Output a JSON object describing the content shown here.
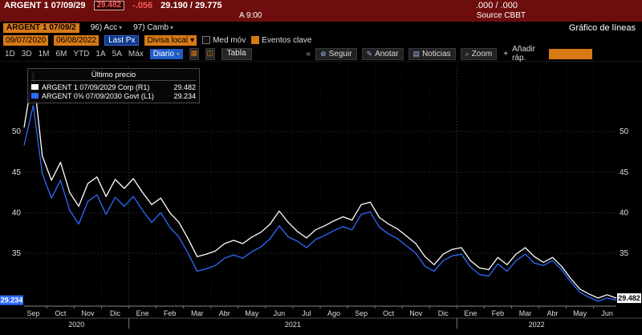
{
  "colors": {
    "header_bg": "#6e0d0d",
    "amber": "#d87a16",
    "toolbar_blue": "#1f5cc8",
    "line_white": "#ffffff",
    "line_blue": "#2e6bff",
    "chart_bg": "#000000"
  },
  "icons": {
    "chevron_down": "▾",
    "chevrons_left": "«",
    "follow": "⊕",
    "annotate": "✎",
    "news": "▤",
    "zoom": "⌕",
    "plus": "+",
    "chart_grid": "▦",
    "chart_alt": "◫"
  },
  "quote_bar": {
    "security": "ARGENT 1 07/09/29",
    "last_price": "29.482",
    "change": "-.056",
    "bid_ask": "29.190 / 29.775",
    "yields": ".000 / .000",
    "as_of": "A 9:00",
    "source": "Source CBBT"
  },
  "menu_bar": {
    "security_field": "ARGENT 1 07/09/2",
    "items": [
      {
        "label": "96) Acc"
      },
      {
        "label": "97) Camb"
      }
    ],
    "screen_title": "Gráfico de líneas"
  },
  "settings_bar": {
    "date_from": "09/07/2020",
    "date_to": "06/08/2022",
    "price_type": "Last Px",
    "currency": "Divisa local",
    "mov_avg_label": "Med móv",
    "key_events_label": "Eventos clave"
  },
  "toolbar": {
    "ranges": [
      "1D",
      "3D",
      "1M",
      "6M",
      "YTD",
      "1A",
      "5A",
      "Máx"
    ],
    "period": "Diario",
    "table_label": "Tabla",
    "actions": [
      "Seguir",
      "Anotar",
      "Noticias",
      "Zoom"
    ],
    "quick_add_label": "Añadir ráp."
  },
  "legend": {
    "title": "Último precio",
    "items": [
      {
        "label": "ARGENT 1 07/09/2029 Corp (R1)",
        "value": "29.482"
      },
      {
        "label": "ARGENT 0⅝ 07/09/2030 Govt (L1)",
        "value": "29.234"
      }
    ]
  },
  "chart_data": {
    "type": "line",
    "title": "Último precio",
    "x_month_labels": [
      "Sep",
      "Oct",
      "Nov",
      "Dic",
      "Ene",
      "Feb",
      "Mar",
      "Abr",
      "May",
      "Jun",
      "Jul",
      "Ago",
      "Sep",
      "Oct",
      "Nov",
      "Dic",
      "Ene",
      "Feb",
      "Mar",
      "Abr",
      "May",
      "Jun"
    ],
    "year_labels": [
      {
        "label": "2020",
        "from": 0,
        "to": 3
      },
      {
        "label": "2021",
        "from": 4,
        "to": 15
      },
      {
        "label": "2022",
        "from": 16,
        "to": 21
      }
    ],
    "points_per_month": 3,
    "ylim": [
      28.5,
      58
    ],
    "yticks": [
      35,
      40,
      45,
      50
    ],
    "grid": true,
    "legend_position": "top-left",
    "series": [
      {
        "name": "ARGENT 1 07/09/2029 Corp (R1)",
        "axis": "right",
        "color": "#ffffff",
        "badge_bg": "#ffffff",
        "badge_fg": "#000000",
        "last_label": "29.482",
        "values": [
          50.5,
          57.3,
          47.0,
          44.0,
          46.2,
          42.5,
          40.8,
          43.6,
          44.4,
          42.0,
          44.1,
          43.0,
          44.2,
          42.5,
          41.0,
          41.8,
          40.0,
          38.8,
          36.8,
          34.6,
          34.9,
          35.3,
          36.2,
          36.6,
          36.2,
          37.0,
          37.6,
          38.6,
          40.2,
          38.8,
          37.7,
          36.9,
          37.9,
          38.4,
          39.0,
          39.5,
          39.1,
          41.0,
          41.3,
          39.4,
          38.6,
          38.0,
          37.1,
          36.2,
          34.6,
          33.6,
          34.9,
          35.5,
          35.7,
          34.1,
          33.2,
          33.0,
          34.5,
          33.6,
          34.9,
          35.7,
          34.6,
          33.9,
          34.5,
          33.4,
          31.9,
          30.6,
          30.0,
          29.5,
          29.9,
          29.482
        ]
      },
      {
        "name": "ARGENT 0⅝ 07/09/2030 Govt (L1)",
        "axis": "left",
        "color": "#2e6bff",
        "badge_bg": "#2e6bff",
        "badge_fg": "#ffffff",
        "last_label": "29.234",
        "values": [
          48.3,
          53.2,
          44.8,
          41.8,
          44.0,
          40.3,
          38.6,
          41.4,
          42.2,
          39.8,
          41.9,
          40.8,
          42.0,
          40.3,
          38.8,
          40.0,
          38.2,
          37.0,
          35.0,
          32.8,
          33.1,
          33.5,
          34.4,
          34.8,
          34.4,
          35.2,
          35.8,
          36.8,
          38.4,
          37.0,
          36.5,
          35.7,
          36.7,
          37.2,
          37.8,
          38.3,
          37.9,
          39.8,
          40.1,
          38.2,
          37.4,
          36.8,
          35.9,
          35.0,
          33.4,
          32.8,
          34.1,
          34.7,
          34.9,
          33.3,
          32.4,
          32.2,
          33.7,
          32.8,
          34.1,
          34.9,
          33.8,
          33.5,
          34.1,
          33.0,
          31.5,
          30.2,
          29.6,
          29.1,
          29.5,
          29.234
        ]
      }
    ]
  }
}
